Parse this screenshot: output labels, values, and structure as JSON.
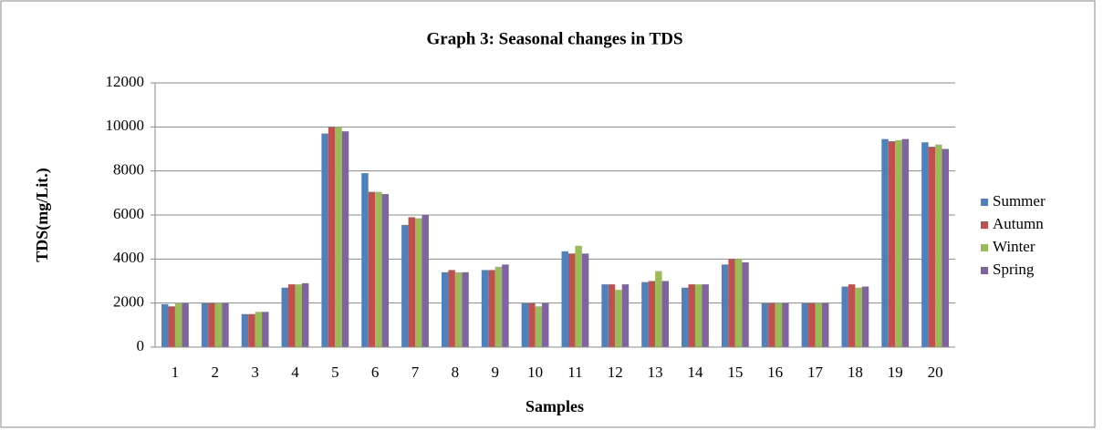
{
  "chart_data": {
    "type": "bar",
    "title": "Graph 3: Seasonal changes in TDS",
    "x_label": "Samples",
    "y_label": "TDS(mg/Lit.)",
    "categories": [
      "1",
      "2",
      "3",
      "4",
      "5",
      "6",
      "7",
      "8",
      "9",
      "10",
      "11",
      "12",
      "13",
      "14",
      "15",
      "16",
      "17",
      "18",
      "19",
      "20"
    ],
    "series": [
      {
        "name": "Summer",
        "color": "#4f81bd",
        "values": [
          1950,
          2000,
          1500,
          2700,
          9700,
          7900,
          5550,
          3400,
          3500,
          2000,
          4350,
          2850,
          2950,
          2700,
          3750,
          2000,
          2000,
          2750,
          9450,
          9300
        ]
      },
      {
        "name": "Autumn",
        "color": "#c0504d",
        "values": [
          1850,
          2000,
          1500,
          2850,
          10000,
          7050,
          5900,
          3500,
          3500,
          2000,
          4250,
          2850,
          3000,
          2850,
          4000,
          2000,
          2000,
          2850,
          9350,
          9100
        ]
      },
      {
        "name": "Winter",
        "color": "#9bbb59",
        "values": [
          2000,
          2000,
          1600,
          2850,
          10000,
          7050,
          5850,
          3400,
          3650,
          1850,
          4600,
          2600,
          3450,
          2850,
          4000,
          2000,
          2000,
          2700,
          9400,
          9200
        ]
      },
      {
        "name": "Spring",
        "color": "#8064a2",
        "values": [
          2000,
          2000,
          1600,
          2900,
          9800,
          6950,
          6000,
          3400,
          3750,
          2000,
          4250,
          2850,
          3000,
          2850,
          3850,
          2000,
          2000,
          2750,
          9450,
          9000
        ]
      }
    ],
    "ylim": [
      0,
      12000
    ],
    "yticks": [
      0,
      2000,
      4000,
      6000,
      8000,
      10000,
      12000
    ],
    "grid": true,
    "legend": "right"
  }
}
